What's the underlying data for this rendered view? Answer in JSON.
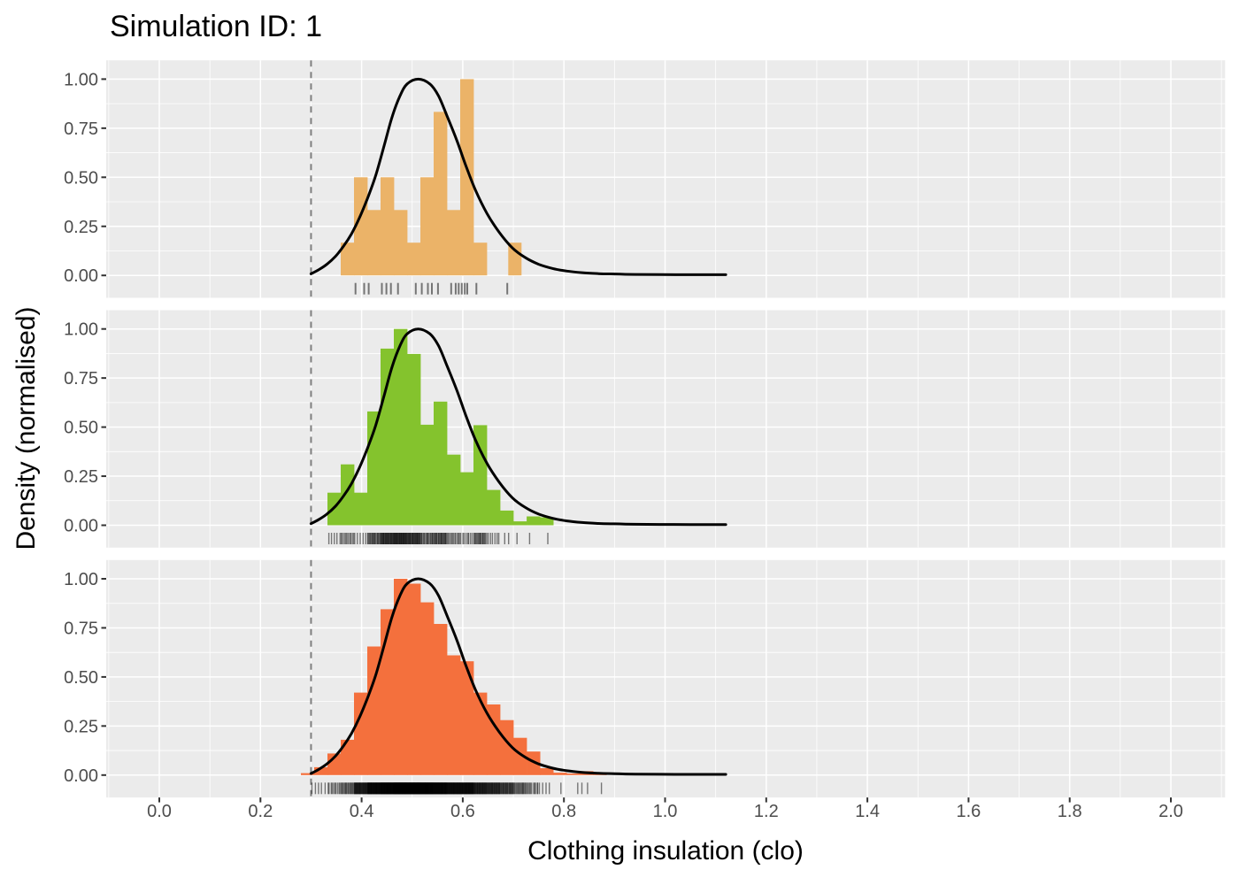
{
  "title": "Simulation ID: 1",
  "x_axis": {
    "title": "Clothing insulation (clo)",
    "tick_labels": [
      "0.0",
      "0.2",
      "0.4",
      "0.6",
      "0.8",
      "1.0",
      "1.2",
      "1.4",
      "1.6",
      "1.8",
      "2.0"
    ],
    "tick_values": [
      0,
      0.2,
      0.4,
      0.6,
      0.8,
      1.0,
      1.2,
      1.4,
      1.6,
      1.8,
      2.0
    ],
    "range": [
      -0.105,
      2.107
    ]
  },
  "y_axis": {
    "title": "Density (normalised)",
    "tick_labels": [
      "0.00",
      "0.25",
      "0.50",
      "0.75",
      "1.00"
    ],
    "tick_values": [
      0,
      0.25,
      0.5,
      0.75,
      1.0
    ]
  },
  "style": {
    "panel_bg": "#EBEBEB",
    "grid_color": "#FFFFFF",
    "axis_text_color": "#4D4D4D",
    "tick_mark_color": "#333333",
    "curve_color": "#000000",
    "ref_line_color": "#7F7F7F",
    "rug_color": "rgba(0,0,0,0.5)"
  },
  "reference_line": {
    "x": 0.3,
    "style": "dashed"
  },
  "chart_data": [
    {
      "type": "histogram",
      "panel": 1,
      "fill": "#EBB368",
      "bin_start": 0.35875,
      "bin_width": 0.02625,
      "heights": [
        0.167,
        0.5,
        0.333,
        0.5,
        0.333,
        0.167,
        0.5,
        0.833,
        0.333,
        1.0,
        0.167
      ],
      "extra_bars": [
        {
          "x": 0.69,
          "h": 0.167
        }
      ],
      "rug_values": [
        0.388,
        0.405,
        0.414,
        0.44,
        0.449,
        0.458,
        0.472,
        0.507,
        0.519,
        0.531,
        0.539,
        0.551,
        0.577,
        0.586,
        0.592,
        0.598,
        0.604,
        0.609,
        0.627,
        0.688
      ]
    },
    {
      "type": "histogram",
      "panel": 2,
      "fill": "#84C32D",
      "bin_start": 0.3325,
      "bin_width": 0.02625,
      "heights": [
        0.166,
        0.31,
        0.166,
        0.58,
        0.9,
        1.0,
        0.873,
        0.512,
        0.63,
        0.36,
        0.27,
        0.51,
        0.18,
        0.075,
        0.02,
        0.045,
        0.04
      ],
      "extra_bars": [],
      "rug_from_hist": {
        "per_height": 31,
        "seed": 11
      }
    },
    {
      "type": "histogram",
      "panel": 3,
      "fill": "#F4703D",
      "bin_start": 0.28,
      "bin_width": 0.02625,
      "heights": [
        0.01,
        0.04,
        0.11,
        0.18,
        0.42,
        0.655,
        0.845,
        1.0,
        0.975,
        0.88,
        0.77,
        0.61,
        0.58,
        0.42,
        0.36,
        0.28,
        0.19,
        0.12,
        0.035,
        0.012,
        0.008,
        0.02,
        0.005
      ],
      "extra_bars": [],
      "rug_from_hist": {
        "per_height": 88,
        "seed": 4
      }
    }
  ],
  "density_curve": {
    "x": [
      0.3,
      0.316,
      0.332,
      0.348,
      0.364,
      0.38,
      0.396,
      0.412,
      0.428,
      0.444,
      0.46,
      0.476,
      0.49,
      0.512,
      0.535,
      0.552,
      0.57,
      0.588,
      0.606,
      0.625,
      0.648,
      0.672,
      0.698,
      0.724,
      0.75,
      0.778,
      0.806,
      0.836,
      0.868,
      0.9,
      0.94,
      0.99,
      1.05,
      1.12
    ],
    "y": [
      0.008,
      0.03,
      0.058,
      0.096,
      0.148,
      0.212,
      0.295,
      0.395,
      0.51,
      0.655,
      0.805,
      0.915,
      0.975,
      1.0,
      0.975,
      0.915,
      0.805,
      0.69,
      0.56,
      0.435,
      0.315,
      0.22,
      0.14,
      0.09,
      0.057,
      0.035,
      0.022,
      0.014,
      0.009,
      0.007,
      0.005,
      0.004,
      0.0035,
      0.0035
    ]
  }
}
